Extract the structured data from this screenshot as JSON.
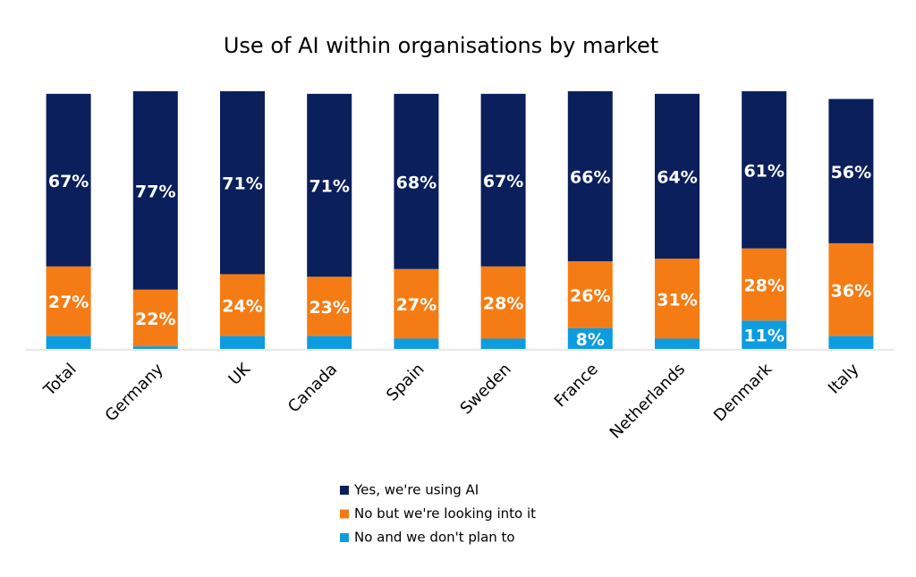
{
  "chart_data": {
    "type": "stacked_bar",
    "title": "Use of AI within organisations by market",
    "categories": [
      "Total",
      "Germany",
      "UK",
      "Canada",
      "Spain",
      "Sweden",
      "France",
      "Netherlands",
      "Denmark",
      "Italy"
    ],
    "ylim": [
      0,
      100
    ],
    "series": [
      {
        "name": "No and we don't plan to",
        "color": "#0e9ce0",
        "values": [
          5,
          1,
          5,
          5,
          4,
          4,
          8,
          4,
          11,
          5
        ],
        "value_labels": [
          null,
          null,
          null,
          null,
          null,
          null,
          "8%",
          null,
          "11%",
          null
        ]
      },
      {
        "name": "No but we're looking into it",
        "color": "#f57c14",
        "values": [
          27,
          22,
          24,
          23,
          27,
          28,
          26,
          31,
          28,
          36
        ],
        "value_labels": [
          "27%",
          "22%",
          "24%",
          "23%",
          "27%",
          "28%",
          "26%",
          "31%",
          "28%",
          "36%"
        ]
      },
      {
        "name": "Yes, we're using AI",
        "color": "#0b1f5c",
        "values": [
          67,
          77,
          71,
          71,
          68,
          67,
          66,
          64,
          61,
          56
        ],
        "value_labels": [
          "67%",
          "77%",
          "71%",
          "71%",
          "68%",
          "67%",
          "66%",
          "64%",
          "61%",
          "56%"
        ]
      }
    ]
  }
}
